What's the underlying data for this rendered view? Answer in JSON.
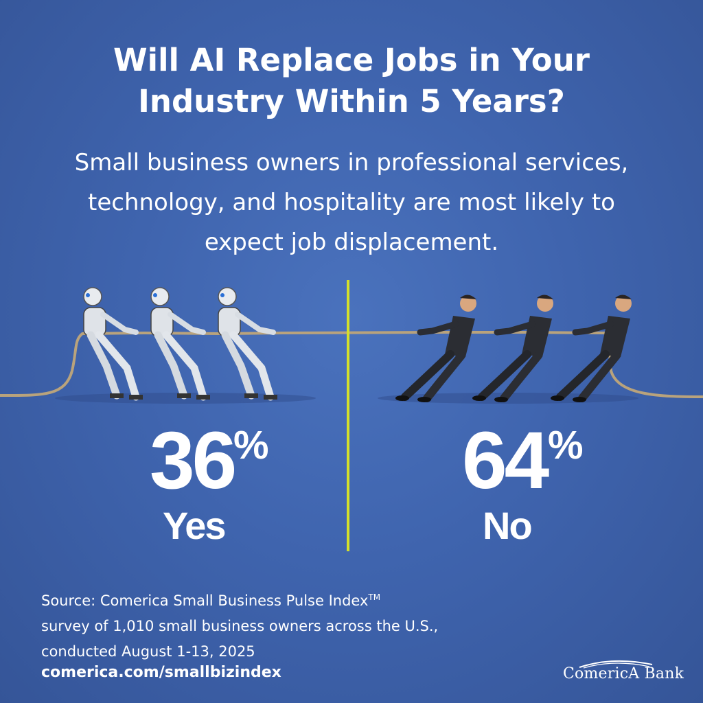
{
  "title": {
    "line1": "Will AI Replace Jobs in Your",
    "line2": "Industry Within 5 Years?"
  },
  "subtitle": {
    "line1": "Small business owners in professional services,",
    "line2": "technology, and hospitality are most likely to",
    "line3": "expect job displacement."
  },
  "chart_data": {
    "type": "bar",
    "categories": [
      "Yes",
      "No"
    ],
    "values": [
      36,
      64
    ],
    "unit": "%",
    "title": "Will AI Replace Jobs in Your Industry Within 5 Years?"
  },
  "stats": {
    "yes": {
      "value": "36",
      "pct": "%",
      "label": "Yes"
    },
    "no": {
      "value": "64",
      "pct": "%",
      "label": "No"
    }
  },
  "colors": {
    "background": "#3f64ae",
    "divider": "#d4e02a",
    "text": "#ffffff",
    "rope": "#b8a07a"
  },
  "source": {
    "line1": "Source: Comerica Small Business Pulse Index",
    "tm": "TM",
    "line2": "survey of 1,010 small business owners across the U.S.,",
    "line3": "conducted August 1-13, 2025",
    "url": "comerica.com/smallbizindex"
  },
  "logo": {
    "text": "ComericA Bank"
  },
  "illustration": {
    "left": "robots-pulling-rope-icon",
    "right": "businessmen-pulling-rope-icon"
  }
}
